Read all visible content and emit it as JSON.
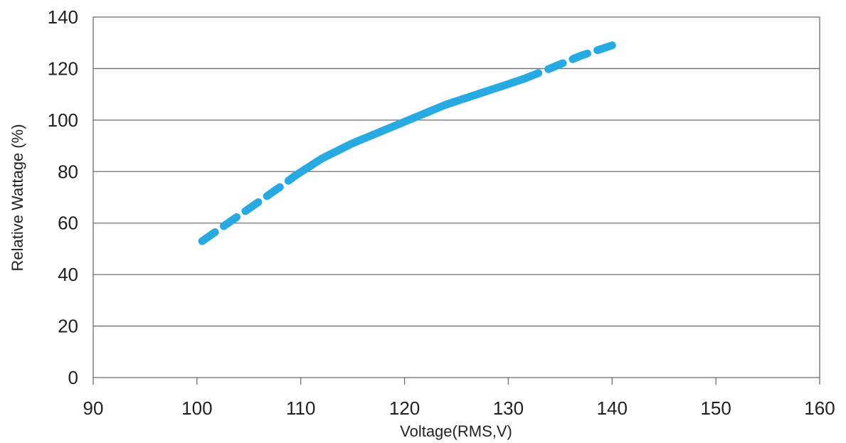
{
  "chart_data": {
    "type": "line",
    "title": "",
    "xlabel": "Voltage(RMS,V)",
    "ylabel": "Relative Wattage (%)",
    "xlim": [
      90,
      160
    ],
    "ylim": [
      0,
      140
    ],
    "x_ticks": [
      90,
      100,
      110,
      120,
      130,
      140,
      150,
      160
    ],
    "y_ticks": [
      0,
      20,
      40,
      60,
      80,
      100,
      120,
      140
    ],
    "grid": "horizontal",
    "legend": "none",
    "colors": {
      "series": "#27aae1",
      "grid": "#6d6e71",
      "text": "#231f20"
    },
    "series": [
      {
        "line_style": "dashed",
        "x": [
          100.5,
          103,
          105.5,
          108,
          109.5
        ],
        "y": [
          53,
          60,
          67,
          74,
          78.5
        ]
      },
      {
        "line_style": "solid",
        "x": [
          109.5,
          112,
          115,
          118,
          121,
          124,
          127,
          130,
          131.5
        ],
        "y": [
          78.5,
          85,
          91,
          96,
          101,
          106,
          110,
          114,
          116
        ]
      },
      {
        "line_style": "dashed",
        "x": [
          131.5,
          134,
          137,
          140
        ],
        "y": [
          116,
          120,
          125,
          129
        ]
      }
    ]
  }
}
